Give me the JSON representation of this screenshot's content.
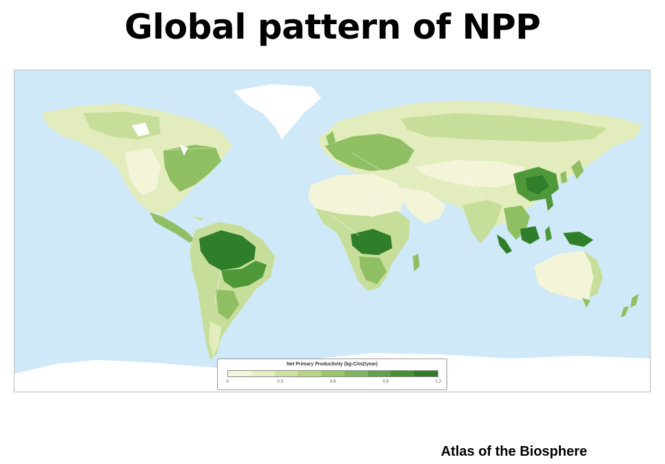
{
  "slide": {
    "title": "Global pattern of NPP",
    "credit": "Atlas of the Biosphere"
  },
  "map": {
    "ocean_color": "#cfe9f8",
    "ice_color": "#ffffff",
    "border_color": "#ffffff",
    "legend": {
      "title": "Net Primary Productivity (kg-C/m2/year)",
      "ticks": [
        "0",
        "0.3",
        "0.6",
        "0.9",
        "1.2"
      ],
      "colors": [
        "#f4f6dc",
        "#e4efbf",
        "#cfe2a0",
        "#b7d486",
        "#9ac66c",
        "#7fb657",
        "#62a343",
        "#468f33",
        "#2e7d26"
      ]
    },
    "productivity_palette": {
      "desert": "#f3f4d8",
      "low": "#e2ecbc",
      "moderate": "#c7de9a",
      "high": "#8fbf62",
      "very_high": "#4f983a",
      "tropical_max": "#2f7e29"
    }
  }
}
